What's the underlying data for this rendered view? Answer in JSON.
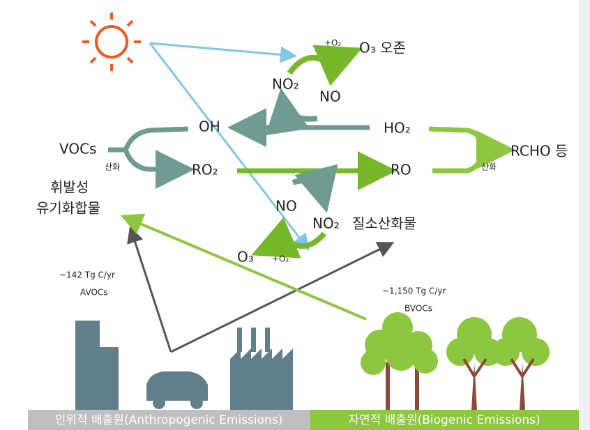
{
  "top_cycle": {
    "oxygen": "+O₂",
    "ozone": "O₃ 오존",
    "no2": "NO₂",
    "no": "NO"
  },
  "middle": {
    "oh": "OH",
    "ho2": "HO₂",
    "vocs": "VOCs",
    "oxidation_left": "산화",
    "ro2": "RO₂",
    "ro": "RO",
    "rcho": "RCHO 등",
    "oxidation_right": "산화",
    "voc_korean": [
      "휘발성",
      "유기화합물"
    ]
  },
  "bottom_cycle": {
    "no": "NO",
    "no2": "NO₂",
    "nox_korean": "질소산화물",
    "ozone": "O₃",
    "oxygen": "+O₂"
  },
  "emissions": {
    "anthropogenic_flux": "~142 Tg C/yr",
    "anthropogenic_label": "AVOCs",
    "biogenic_flux": "~1,150 Tg C/yr",
    "biogenic_label": "BVOCs"
  },
  "footer": {
    "anthropogenic": "인위적 배출원(Anthropogenic Emissions)",
    "biogenic": "자연적 배출원(Biogenic Emissions)"
  }
}
